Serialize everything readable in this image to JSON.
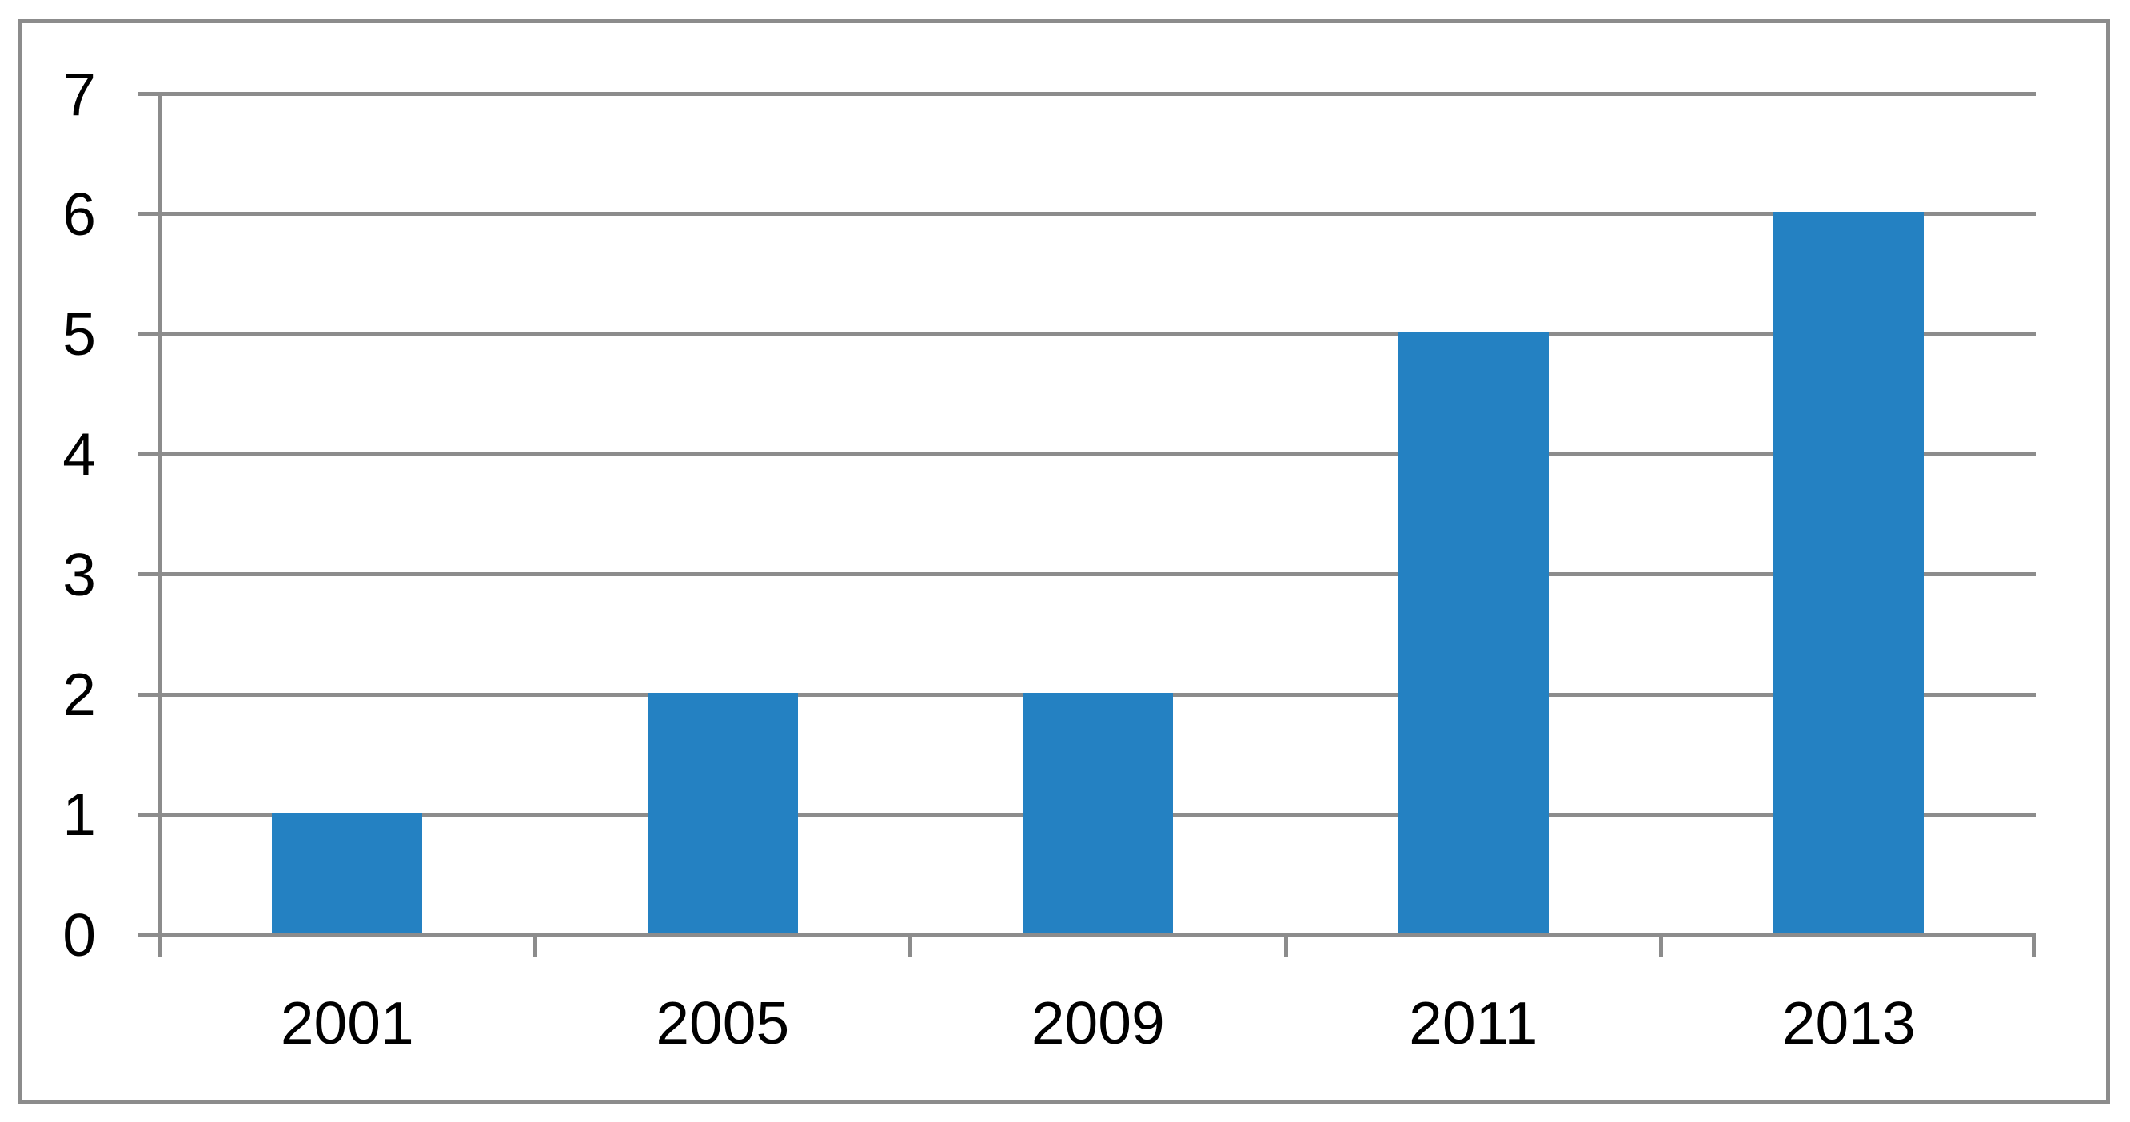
{
  "chart_data": {
    "type": "bar",
    "categories": [
      "2001",
      "2005",
      "2009",
      "2011",
      "2013"
    ],
    "values": [
      1,
      2,
      2,
      5,
      6
    ],
    "yticks": [
      "0",
      "1",
      "2",
      "3",
      "4",
      "5",
      "6",
      "7"
    ],
    "ylim": [
      0,
      7
    ],
    "ytick_interval": 1,
    "grid": "horizontal-on",
    "legend": "none",
    "bar_color": "#2481C2",
    "grid_color": "#8C8C8C",
    "frame_color": "#8C8C8C",
    "text_color": "#000000",
    "background_color": "#ffffff"
  }
}
